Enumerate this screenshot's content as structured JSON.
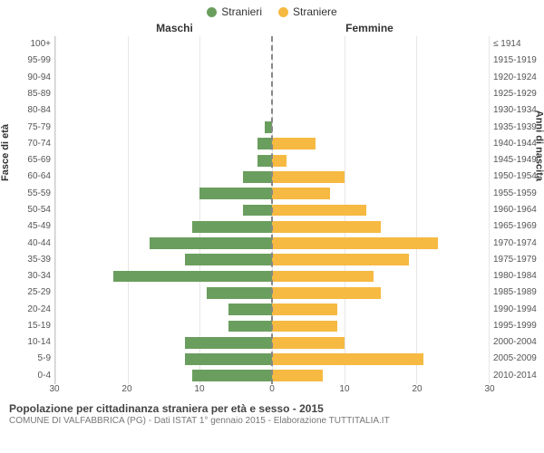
{
  "legend": {
    "male": "Stranieri",
    "female": "Straniere"
  },
  "headers": {
    "left": "Maschi",
    "right": "Femmine"
  },
  "axis_titles": {
    "left": "Fasce di età",
    "right": "Anni di nascita"
  },
  "colors": {
    "male": "#6a9e5e",
    "female": "#f6b942",
    "grid": "#e6e6e6",
    "background": "#ffffff"
  },
  "chart": {
    "type": "population-pyramid",
    "x_max": 30,
    "x_ticks": [
      30,
      20,
      10,
      0,
      10,
      20,
      30
    ],
    "bar_height_pct": 70,
    "age_labels": [
      "100+",
      "95-99",
      "90-94",
      "85-89",
      "80-84",
      "75-79",
      "70-74",
      "65-69",
      "60-64",
      "55-59",
      "50-54",
      "45-49",
      "40-44",
      "35-39",
      "30-34",
      "25-29",
      "20-24",
      "15-19",
      "10-14",
      "5-9",
      "0-4"
    ],
    "year_labels": [
      "≤ 1914",
      "1915-1919",
      "1920-1924",
      "1925-1929",
      "1930-1934",
      "1935-1939",
      "1940-1944",
      "1945-1949",
      "1950-1954",
      "1955-1959",
      "1960-1964",
      "1965-1969",
      "1970-1974",
      "1975-1979",
      "1980-1984",
      "1985-1989",
      "1990-1994",
      "1995-1999",
      "2000-2004",
      "2005-2009",
      "2010-2014"
    ],
    "male": [
      0,
      0,
      0,
      0,
      0,
      1,
      2,
      2,
      4,
      10,
      4,
      11,
      17,
      12,
      22,
      9,
      6,
      6,
      12,
      12,
      11
    ],
    "female": [
      0,
      0,
      0,
      0,
      0,
      0,
      6,
      2,
      10,
      8,
      13,
      15,
      23,
      19,
      14,
      15,
      9,
      9,
      10,
      21,
      7
    ]
  },
  "caption": {
    "title": "Popolazione per cittadinanza straniera per età e sesso - 2015",
    "subtitle": "COMUNE DI VALFABBRICA (PG) - Dati ISTAT 1° gennaio 2015 - Elaborazione TUTTITALIA.IT"
  }
}
